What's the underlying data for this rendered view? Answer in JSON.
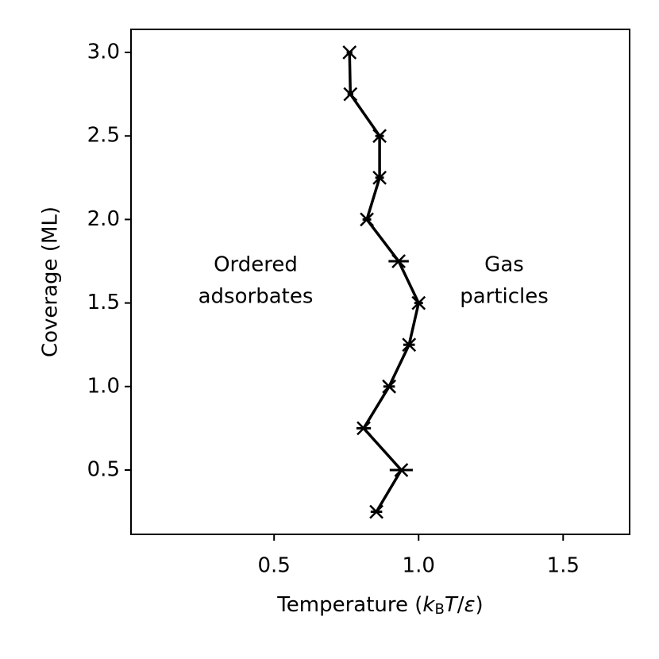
{
  "chart_data": {
    "type": "line",
    "xlabel": [
      "Temperature (",
      "k",
      "B",
      "T",
      "/",
      "ε",
      ")"
    ],
    "ylabel": "Coverage (ML)",
    "annotations": [
      [
        "Ordered",
        "adsorbates"
      ],
      [
        "Gas",
        "particles"
      ]
    ],
    "series": [
      {
        "color": "#000000",
        "marker": "x",
        "x": [
          0.761,
          0.764,
          0.865,
          0.865,
          0.821,
          0.931,
          1.0,
          0.967,
          0.898,
          0.81,
          0.94,
          0.854
        ],
        "y": [
          3.0,
          2.75,
          2.5,
          2.25,
          2.0,
          1.75,
          1.5,
          1.25,
          1.0,
          0.75,
          0.5,
          0.25
        ],
        "xerr": [
          0.01,
          0.01,
          0.015,
          0.015,
          0.015,
          0.035,
          0.015,
          0.02,
          0.02,
          0.025,
          0.04,
          0.02
        ]
      }
    ],
    "xlim": [
      0.005,
      1.73
    ],
    "ylim": [
      0.115,
      3.138
    ],
    "xticks": [
      0.5,
      {
        "value": 1.0,
        "label": "1.0"
      },
      1.5
    ],
    "yticks": [
      0.5,
      {
        "value": 1.0,
        "label": "1.0"
      },
      1.5,
      {
        "value": 2.0,
        "label": "2.0"
      },
      2.5,
      {
        "value": 3.0,
        "label": "3.0"
      }
    ],
    "grid": false
  }
}
